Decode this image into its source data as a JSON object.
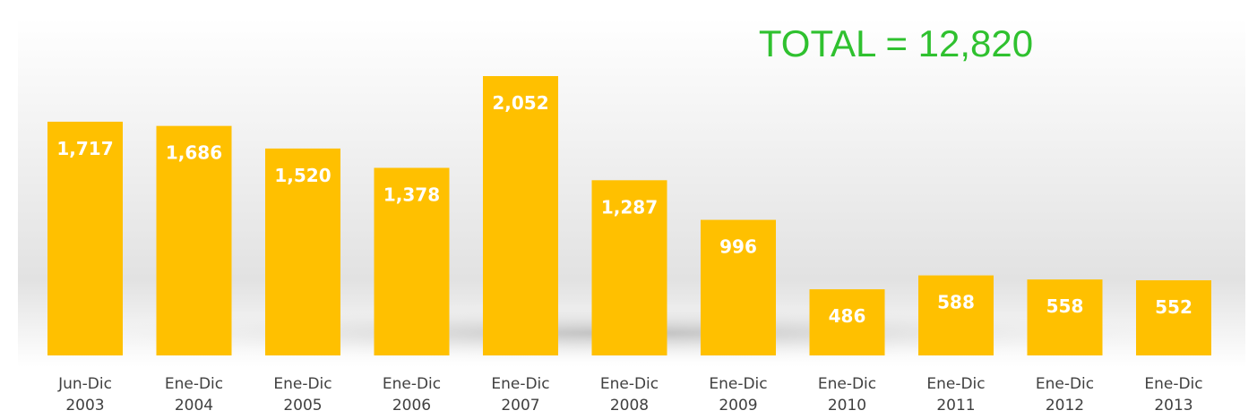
{
  "chart_data": {
    "type": "bar",
    "title": "TOTAL = 12,820",
    "categories": [
      [
        "Jun-Dic",
        "2003"
      ],
      [
        "Ene-Dic",
        "2004"
      ],
      [
        "Ene-Dic",
        "2005"
      ],
      [
        "Ene-Dic",
        "2006"
      ],
      [
        "Ene-Dic",
        "2007"
      ],
      [
        "Ene-Dic",
        "2008"
      ],
      [
        "Ene-Dic",
        "2009"
      ],
      [
        "Ene-Dic",
        "2010"
      ],
      [
        "Ene-Dic",
        "2011"
      ],
      [
        "Ene-Dic",
        "2012"
      ],
      [
        "Ene-Dic",
        "2013"
      ]
    ],
    "values": [
      1717,
      1686,
      1520,
      1378,
      2052,
      1287,
      996,
      486,
      588,
      558,
      552
    ],
    "value_labels": [
      "1,717",
      "1,686",
      "1,520",
      "1,378",
      "2,052",
      "1,287",
      "996",
      "486",
      "588",
      "558",
      "552"
    ],
    "color": "#ffc000"
  }
}
